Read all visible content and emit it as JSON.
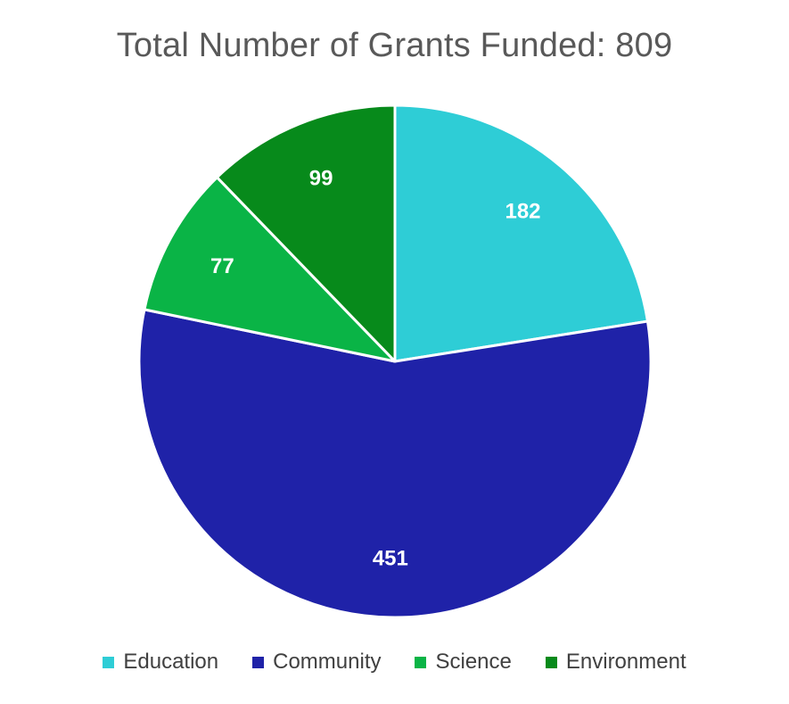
{
  "chart_data": {
    "type": "pie",
    "title": "Total Number of Grants Funded: 809",
    "categories": [
      "Education",
      "Community",
      "Science",
      "Environment"
    ],
    "values": [
      182,
      451,
      77,
      99
    ],
    "colors": [
      "#2ECDD6",
      "#1F22A8",
      "#0AB446",
      "#078A1B"
    ],
    "data_label_color": "#FFFFFF",
    "start_angle_deg": 0,
    "direction": "clockwise",
    "legend_position": "bottom"
  }
}
